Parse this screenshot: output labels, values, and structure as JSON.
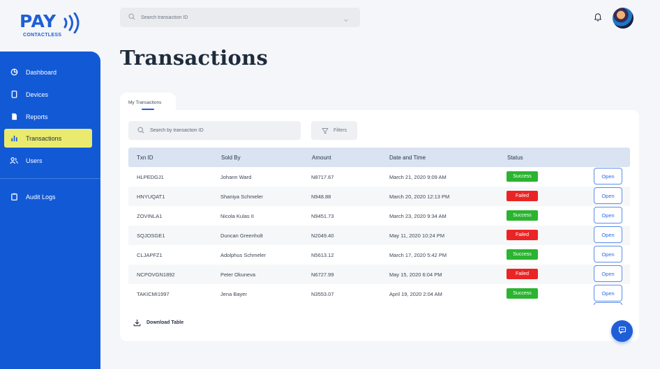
{
  "brand": {
    "logo_text": "PAY",
    "logo_subtext": "CONTACTLESS",
    "accent": "#1259d6"
  },
  "header": {
    "search_placeholder": "Search transaction ID",
    "search_icon": "search-icon",
    "dropdown_icon": "chevron-down-icon",
    "notification_icon": "bell-icon"
  },
  "sidebar": {
    "items": [
      {
        "label": "Dashboard",
        "icon": "pie-chart-icon",
        "active": false
      },
      {
        "label": "Devices",
        "icon": "device-icon",
        "active": false
      },
      {
        "label": "Reports",
        "icon": "document-icon",
        "active": false
      },
      {
        "label": "Transactions",
        "icon": "bar-chart-icon",
        "active": true
      },
      {
        "label": "Users",
        "icon": "users-icon",
        "active": false
      },
      {
        "label": "Audit Logs",
        "icon": "clipboard-icon",
        "active": false
      }
    ],
    "active_color": "#eaeb6e"
  },
  "page": {
    "title": "Transactions"
  },
  "tabs": [
    {
      "label": "My Transactions",
      "active": true
    }
  ],
  "table_tools": {
    "search_placeholder": "Search by transaction ID",
    "filters_label": "Filters"
  },
  "table": {
    "columns": [
      "Txn ID",
      "Sold By",
      "Amount",
      "Date and Time",
      "Status"
    ],
    "open_label": "Open",
    "rows": [
      {
        "txn_id": "HLPEDGJ1",
        "sold_by": "Johann Ward",
        "amount": "N8717.67",
        "datetime": "March 21, 2020 9:09 AM",
        "status": "Success"
      },
      {
        "txn_id": "HNYUQAT1",
        "sold_by": "Shaniya Schmeler",
        "amount": "N948.88",
        "datetime": "March 20, 2020 12:13 PM",
        "status": "Failed"
      },
      {
        "txn_id": "ZOVINLA1",
        "sold_by": "Nicola Kulas II",
        "amount": "N9451.73",
        "datetime": "March 23, 2020 9:34 AM",
        "status": "Success"
      },
      {
        "txn_id": "SQJOSGE1",
        "sold_by": "Duncan Greenholt",
        "amount": "N2049.40",
        "datetime": "May 11, 2020 10:24 PM",
        "status": "Failed"
      },
      {
        "txn_id": "CLJAPFZ1",
        "sold_by": "Adolphus Schmeler",
        "amount": "N5613.12",
        "datetime": "March 17, 2020 5:42 PM",
        "status": "Success"
      },
      {
        "txn_id": "NCPOVGN1892",
        "sold_by": "Peter Okuneva",
        "amount": "N6727.99",
        "datetime": "May 15, 2020 6:04 PM",
        "status": "Failed"
      },
      {
        "txn_id": "TAKICMI1997",
        "sold_by": "Jena Bayer",
        "amount": "N3553.07",
        "datetime": "April 19, 2020 2:04 AM",
        "status": "Success"
      }
    ],
    "status_colors": {
      "Success": "#2ab42f",
      "Failed": "#ea2424"
    }
  },
  "footer": {
    "download_label": "Download Table",
    "download_icon": "download-icon"
  },
  "chat": {
    "icon": "chat-icon"
  }
}
